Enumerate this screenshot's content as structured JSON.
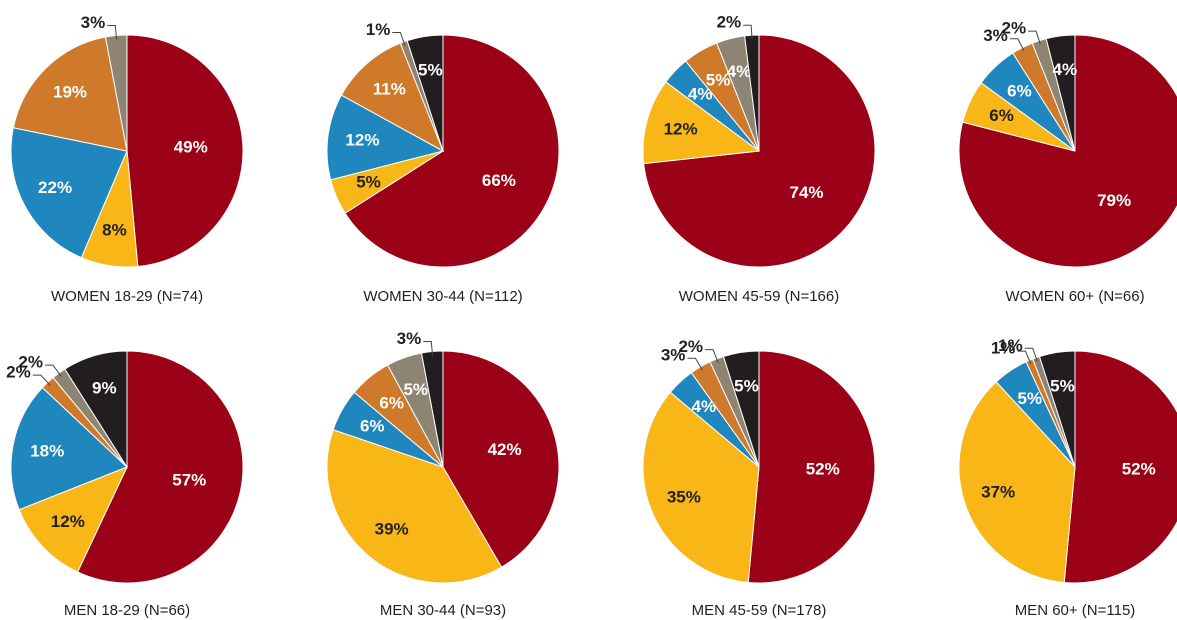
{
  "chart_data": [
    {
      "type": "pie",
      "title": "WOMEN 18-29 (N=74)",
      "values": [
        49,
        8,
        22,
        19,
        3
      ],
      "value_labels": [
        "49%",
        "8%",
        "22%",
        "19%",
        "3%"
      ],
      "colors": [
        "#9b0217",
        "#f8b617",
        "#1f87bd",
        "#cf7a2b",
        "#8d8474"
      ]
    },
    {
      "type": "pie",
      "title": "WOMEN 30-44 (N=112)",
      "values": [
        66,
        5,
        12,
        11,
        1,
        5
      ],
      "value_labels": [
        "66%",
        "5%",
        "12%",
        "11%",
        "1%",
        "5%"
      ],
      "colors": [
        "#9b0217",
        "#f8b617",
        "#1f87bd",
        "#cf7a2b",
        "#8d8474",
        "#221e1f"
      ]
    },
    {
      "type": "pie",
      "title": "WOMEN 45-59 (N=166)",
      "values": [
        74,
        12,
        4,
        5,
        4,
        2
      ],
      "value_labels": [
        "74%",
        "12%",
        "4%",
        "5%",
        "4%",
        "2%"
      ],
      "colors": [
        "#9b0217",
        "#f8b617",
        "#1f87bd",
        "#cf7a2b",
        "#8d8474",
        "#221e1f"
      ]
    },
    {
      "type": "pie",
      "title": "WOMEN 60+ (N=66)",
      "values": [
        79,
        6,
        6,
        3,
        2,
        4
      ],
      "value_labels": [
        "79%",
        "6%",
        "6%",
        "3%",
        "2%",
        "4%"
      ],
      "colors": [
        "#9b0217",
        "#f8b617",
        "#1f87bd",
        "#cf7a2b",
        "#8d8474",
        "#221e1f"
      ]
    },
    {
      "type": "pie",
      "title": "MEN 18-29 (N=66)",
      "values": [
        57,
        12,
        18,
        2,
        2,
        9
      ],
      "value_labels": [
        "57%",
        "12%",
        "18%",
        "2%",
        "2%",
        "9%"
      ],
      "colors": [
        "#9b0217",
        "#f8b617",
        "#1f87bd",
        "#cf7a2b",
        "#8d8474",
        "#221e1f"
      ]
    },
    {
      "type": "pie",
      "title": "MEN 30-44 (N=93)",
      "values": [
        42,
        39,
        6,
        6,
        5,
        3
      ],
      "value_labels": [
        "42%",
        "39%",
        "6%",
        "6%",
        "5%",
        "3%"
      ],
      "colors": [
        "#9b0217",
        "#f8b617",
        "#1f87bd",
        "#cf7a2b",
        "#8d8474",
        "#221e1f"
      ]
    },
    {
      "type": "pie",
      "title": "MEN 45-59 (N=178)",
      "values": [
        52,
        35,
        4,
        3,
        2,
        5
      ],
      "value_labels": [
        "52%",
        "35%",
        "4%",
        "3%",
        "2%",
        "5%"
      ],
      "colors": [
        "#9b0217",
        "#f8b617",
        "#1f87bd",
        "#cf7a2b",
        "#8d8474",
        "#221e1f"
      ]
    },
    {
      "type": "pie",
      "title": "MEN 60+ (N=115)",
      "values": [
        52,
        37,
        5,
        1,
        1,
        5
      ],
      "value_labels": [
        "52%",
        "37%",
        "5%",
        "1%",
        "1%",
        "5%"
      ],
      "colors": [
        "#9b0217",
        "#f8b617",
        "#1f87bd",
        "#cf7a2b",
        "#8d8474",
        "#221e1f"
      ]
    }
  ]
}
